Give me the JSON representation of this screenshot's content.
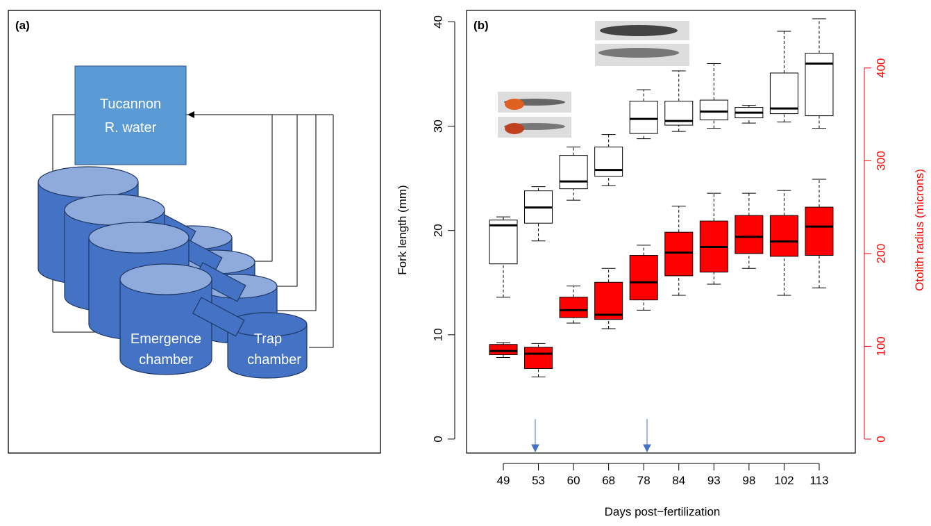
{
  "panel_a": {
    "label": "(a)",
    "source_lines": [
      "Tucannon",
      "R. water"
    ],
    "emergence_lines": [
      "Emergence",
      "chamber"
    ],
    "trap_lines": [
      "Trap",
      "chamber"
    ]
  },
  "chart_data": {
    "type": "boxplot",
    "panel_label": "(b)",
    "x_label": "Days post−fertilization",
    "y_label": "Fork length (mm)",
    "y2_label": "Otolith radius (microns)",
    "categories": [
      "49",
      "53",
      "60",
      "68",
      "78",
      "84",
      "93",
      "98",
      "102",
      "113"
    ],
    "ylim": [
      -1.34,
      41.1
    ],
    "yticks": [
      0,
      10,
      20,
      30,
      40
    ],
    "y2lim": [
      -15,
      462
    ],
    "y2ticks": [
      0,
      100,
      200,
      300,
      400
    ],
    "y2_color": "#ff0000",
    "series": [
      {
        "color": "#ffffff",
        "stroke": "#000000",
        "min": [
          13.6,
          19,
          22.9,
          24.3,
          28.8,
          29.5,
          29.8,
          30.3,
          30.4,
          29.8
        ],
        "q1": [
          16.8,
          20.7,
          24,
          25.2,
          29.3,
          30.1,
          30.6,
          30.8,
          31.2,
          31
        ],
        "median": [
          20.5,
          22.2,
          24.7,
          25.8,
          30.7,
          30.5,
          31.4,
          31.3,
          31.7,
          36
        ],
        "q3": [
          21,
          23.8,
          27.2,
          28,
          32.4,
          32.4,
          32.5,
          31.8,
          35.1,
          37
        ],
        "max": [
          21.3,
          24.2,
          28,
          29.2,
          33.5,
          35.3,
          36,
          32,
          39.1,
          40.3
        ]
      },
      {
        "color": "#ff0000",
        "stroke": "#000000",
        "axis": "y2",
        "min": [
          88,
          67,
          125,
          119,
          139,
          155,
          167,
          184,
          155,
          163
        ],
        "q1": [
          91,
          76,
          131,
          129,
          150,
          176,
          180,
          200,
          197,
          198
        ],
        "median": [
          95,
          92,
          139,
          134,
          169,
          201,
          207,
          218,
          213,
          229
        ],
        "q3": [
          102,
          99,
          153,
          169,
          198,
          223,
          235,
          241,
          241,
          250
        ],
        "max": [
          104,
          103,
          165,
          184,
          209,
          251,
          265,
          265,
          268,
          280
        ]
      }
    ]
  }
}
